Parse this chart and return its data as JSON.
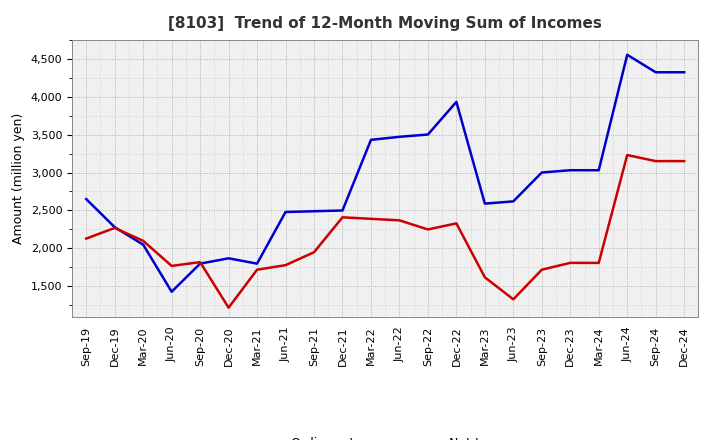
{
  "title": "[8103]  Trend of 12-Month Moving Sum of Incomes",
  "ylabel": "Amount (million yen)",
  "x_labels": [
    "Sep-19",
    "Dec-19",
    "Mar-20",
    "Jun-20",
    "Sep-20",
    "Dec-20",
    "Mar-21",
    "Jun-21",
    "Sep-21",
    "Dec-21",
    "Mar-22",
    "Jun-22",
    "Sep-22",
    "Dec-22",
    "Mar-23",
    "Jun-23",
    "Sep-23",
    "Dec-23",
    "Mar-24",
    "Jun-24",
    "Sep-24",
    "Dec-24"
  ],
  "ordinary_income": [
    2650,
    2280,
    2050,
    1430,
    1800,
    1870,
    1800,
    2480,
    2490,
    2500,
    3430,
    3470,
    3500,
    3930,
    2590,
    2620,
    3000,
    3030,
    3030,
    4550,
    4320,
    4320
  ],
  "net_income": [
    2130,
    2270,
    2100,
    1770,
    1820,
    1220,
    1720,
    1780,
    1950,
    2410,
    2390,
    2370,
    2250,
    2330,
    1620,
    1330,
    1720,
    1810,
    1810,
    3230,
    3150,
    3150
  ],
  "ordinary_color": "#0000cc",
  "net_color": "#cc0000",
  "background_color": "#ffffff",
  "plot_bg_color": "#f0f0f0",
  "grid_color": "#999999",
  "ylim": [
    1100,
    4750
  ],
  "yticks": [
    1500,
    2000,
    2500,
    3000,
    3500,
    4000,
    4500
  ],
  "title_fontsize": 11,
  "axis_label_fontsize": 9,
  "tick_fontsize": 8,
  "legend_fontsize": 9,
  "line_width": 1.8
}
